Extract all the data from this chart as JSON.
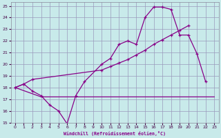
{
  "xlabel": "Windchill (Refroidissement éolien,°C)",
  "background_color": "#c8eaea",
  "grid_color": "#9999bb",
  "line_color": "#880088",
  "xlim": [
    -0.5,
    23.5
  ],
  "ylim": [
    15,
    25.3
  ],
  "xticks": [
    0,
    1,
    2,
    3,
    4,
    5,
    6,
    7,
    8,
    9,
    10,
    11,
    12,
    13,
    14,
    15,
    16,
    17,
    18,
    19,
    20,
    21,
    22,
    23
  ],
  "yticks": [
    15,
    16,
    17,
    18,
    19,
    20,
    21,
    22,
    23,
    24,
    25
  ],
  "line1_x": [
    0,
    1,
    2,
    3,
    4,
    5,
    6,
    7,
    8,
    10,
    11,
    12,
    13,
    14,
    15,
    16,
    17,
    18,
    19,
    20,
    21,
    22
  ],
  "line1_y": [
    18.0,
    18.3,
    17.7,
    17.3,
    16.5,
    16.0,
    14.9,
    17.3,
    18.5,
    20.0,
    20.5,
    21.7,
    22.0,
    21.7,
    24.0,
    24.9,
    24.9,
    24.7,
    22.5,
    22.5,
    20.9,
    18.5
  ],
  "line2_x": [
    0,
    3,
    7,
    10,
    14,
    22,
    23
  ],
  "line2_y": [
    18.0,
    17.2,
    17.2,
    17.2,
    17.2,
    17.2,
    17.2
  ],
  "line3_x": [
    0,
    1,
    2,
    10,
    11,
    12,
    13,
    14,
    15,
    16,
    17,
    18,
    19,
    20
  ],
  "line3_y": [
    18.0,
    18.3,
    18.7,
    19.5,
    19.8,
    20.1,
    20.4,
    20.8,
    21.2,
    21.7,
    22.1,
    22.5,
    22.9,
    23.3
  ]
}
